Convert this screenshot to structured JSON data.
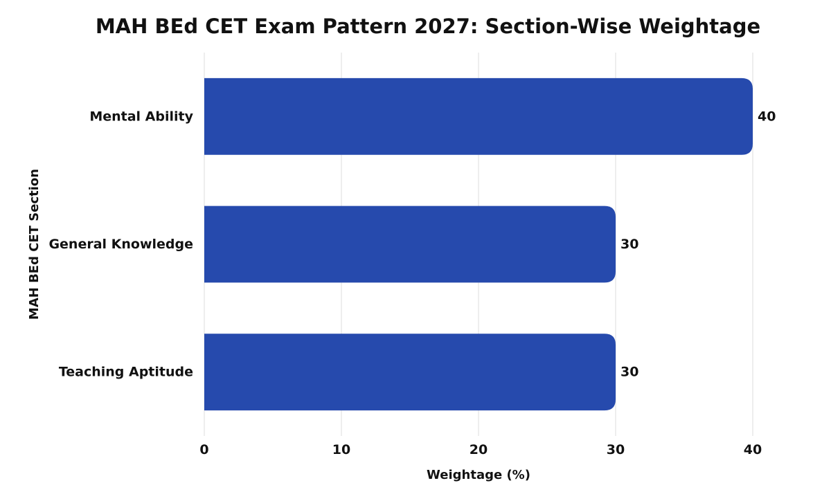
{
  "chart_data": {
    "type": "bar",
    "orientation": "horizontal",
    "title": "MAH BEd CET Exam Pattern 2027: Section-Wise Weightage",
    "xlabel": "Weightage (%)",
    "ylabel": "MAH BEd CET Section",
    "categories": [
      "Mental Ability",
      "General Knowledge",
      "Teaching Aptitude"
    ],
    "values": [
      40,
      30,
      30
    ],
    "xlim": [
      0,
      40
    ],
    "xticks": [
      "0",
      "10",
      "20",
      "30",
      "40"
    ],
    "grid": true,
    "legend": "none",
    "bar_color": "#264AAD"
  }
}
